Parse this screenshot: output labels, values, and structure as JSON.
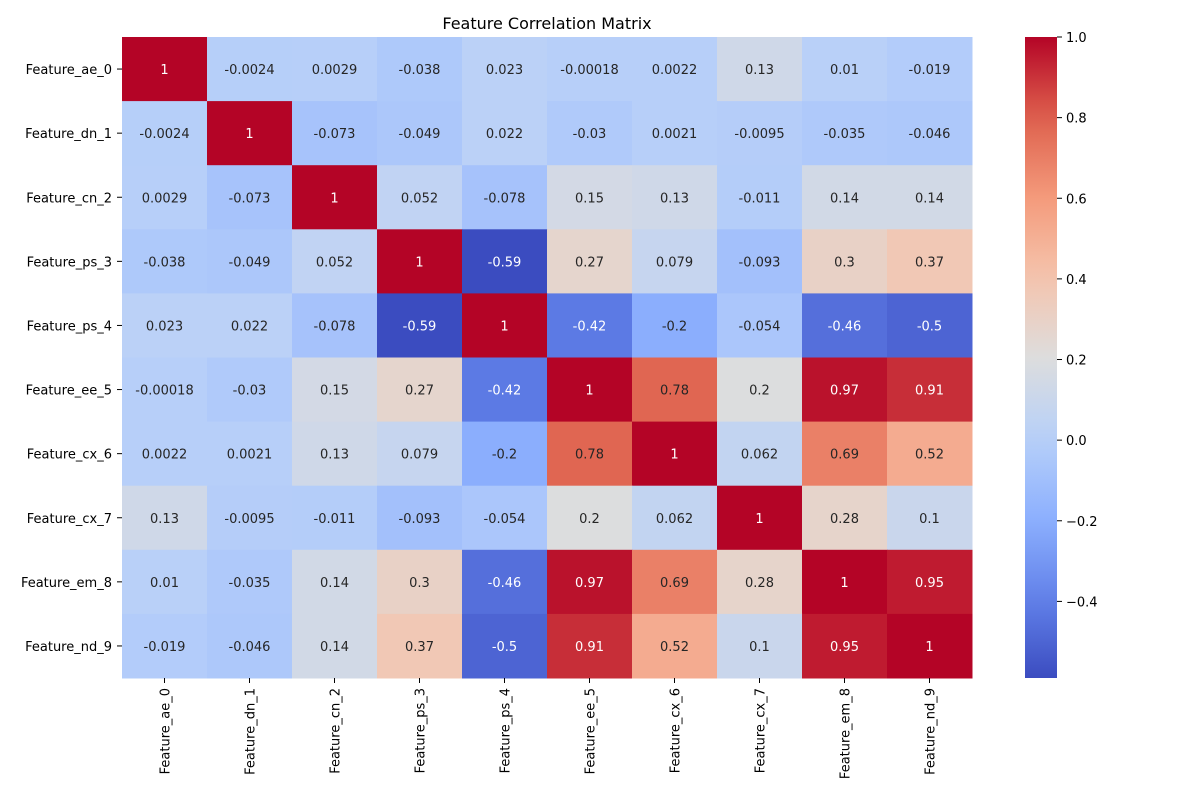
{
  "chart_data": {
    "type": "heatmap",
    "title": "Feature Correlation Matrix",
    "xlabel": "",
    "ylabel": "",
    "categories": [
      "Feature_ae_0",
      "Feature_dn_1",
      "Feature_cn_2",
      "Feature_ps_3",
      "Feature_ps_4",
      "Feature_ee_5",
      "Feature_cx_6",
      "Feature_cx_7",
      "Feature_em_8",
      "Feature_nd_9"
    ],
    "values": [
      [
        1,
        -0.0024,
        0.0029,
        -0.038,
        0.023,
        -0.00018,
        0.0022,
        0.13,
        0.01,
        -0.019
      ],
      [
        -0.0024,
        1,
        -0.073,
        -0.049,
        0.022,
        -0.03,
        0.0021,
        -0.0095,
        -0.035,
        -0.046
      ],
      [
        0.0029,
        -0.073,
        1,
        0.052,
        -0.078,
        0.15,
        0.13,
        -0.011,
        0.14,
        0.14
      ],
      [
        -0.038,
        -0.049,
        0.052,
        1,
        -0.59,
        0.27,
        0.079,
        -0.093,
        0.3,
        0.37
      ],
      [
        0.023,
        0.022,
        -0.078,
        -0.59,
        1,
        -0.42,
        -0.2,
        -0.054,
        -0.46,
        -0.5
      ],
      [
        -0.00018,
        -0.03,
        0.15,
        0.27,
        -0.42,
        1,
        0.78,
        0.2,
        0.97,
        0.91
      ],
      [
        0.0022,
        0.0021,
        0.13,
        0.079,
        -0.2,
        0.78,
        1,
        0.062,
        0.69,
        0.52
      ],
      [
        0.13,
        -0.0095,
        -0.011,
        -0.093,
        -0.054,
        0.2,
        0.062,
        1,
        0.28,
        0.1
      ],
      [
        0.01,
        -0.035,
        0.14,
        0.3,
        -0.46,
        0.97,
        0.69,
        0.28,
        1,
        0.95
      ],
      [
        -0.019,
        -0.046,
        0.14,
        0.37,
        -0.5,
        0.91,
        0.52,
        0.1,
        0.95,
        1
      ]
    ],
    "color_scale": {
      "name": "coolwarm",
      "vmin": -0.59,
      "vmax": 1.0,
      "ticks": [
        -0.4,
        -0.2,
        0.0,
        0.2,
        0.4,
        0.6,
        0.8,
        1.0
      ],
      "tick_labels": [
        "−0.4",
        "−0.2",
        "0.0",
        "0.2",
        "0.4",
        "0.6",
        "0.8",
        "1.0"
      ]
    },
    "grid": false,
    "legend": "colorbar right"
  }
}
